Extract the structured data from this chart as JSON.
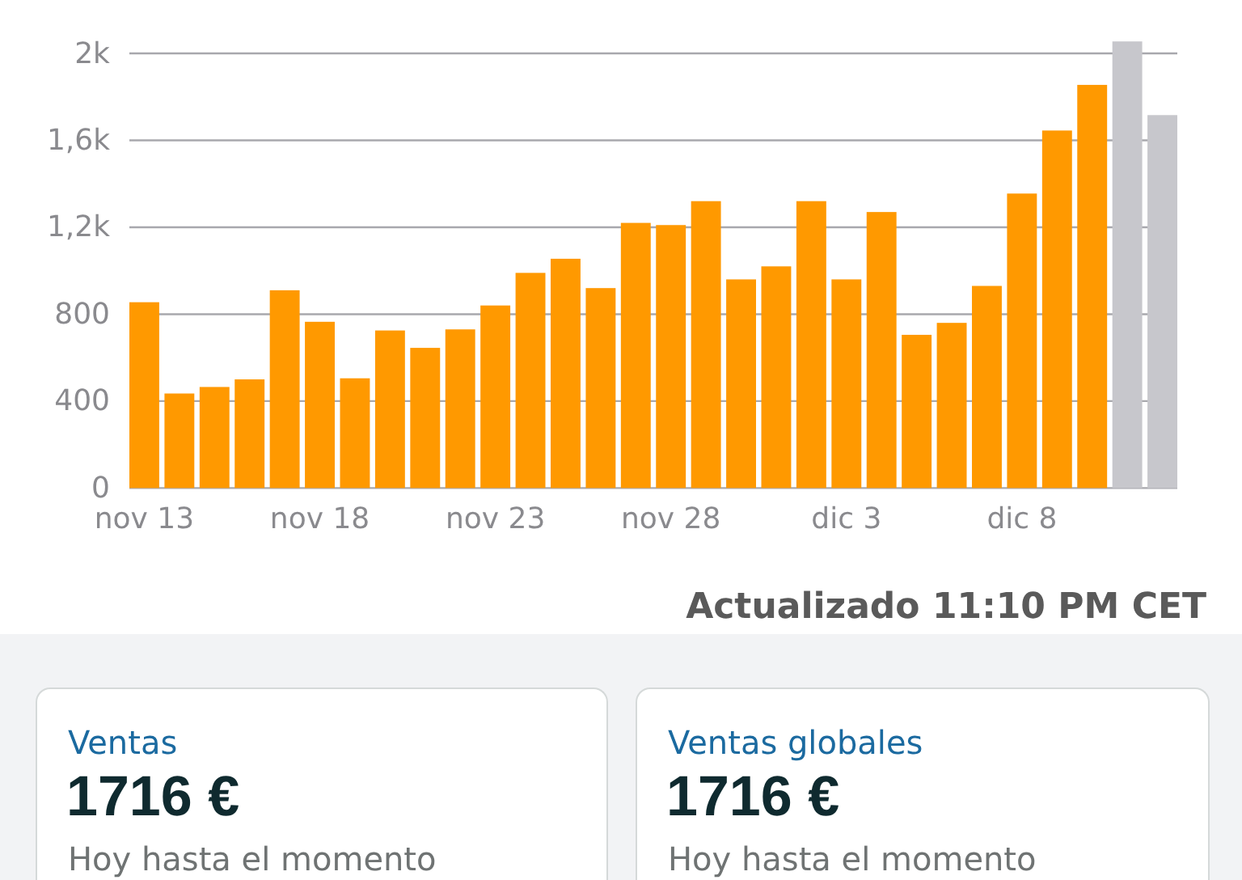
{
  "chart_data": [
    {
      "type": "bar",
      "annotations": [
        "Actualizado 11:10 PM CET"
      ],
      "categories": [
        "nov 13",
        null,
        null,
        null,
        null,
        "nov 18",
        null,
        null,
        null,
        null,
        "nov 23",
        null,
        null,
        null,
        null,
        "nov 28",
        null,
        null,
        null,
        null,
        "dic 3",
        null,
        null,
        null,
        null,
        "dic 8",
        null,
        null,
        null,
        null
      ],
      "values": [
        855,
        435,
        465,
        500,
        910,
        765,
        505,
        725,
        645,
        730,
        840,
        990,
        1055,
        920,
        1220,
        1210,
        1320,
        960,
        1020,
        1320,
        960,
        1270,
        705,
        760,
        930,
        1355,
        1645,
        1855,
        2055,
        1716
      ],
      "colors": [
        "#ff9900",
        "#ff9900",
        "#ff9900",
        "#ff9900",
        "#ff9900",
        "#ff9900",
        "#ff9900",
        "#ff9900",
        "#ff9900",
        "#ff9900",
        "#ff9900",
        "#ff9900",
        "#ff9900",
        "#ff9900",
        "#ff9900",
        "#ff9900",
        "#ff9900",
        "#ff9900",
        "#ff9900",
        "#ff9900",
        "#ff9900",
        "#ff9900",
        "#ff9900",
        "#ff9900",
        "#ff9900",
        "#ff9900",
        "#ff9900",
        "#ff9900",
        "#c7c7cc",
        "#c7c7cc"
      ],
      "ylim": [
        0,
        2055
      ],
      "yticks": [
        0,
        400,
        800,
        {
          "value": 1200,
          "label": "1,2k"
        },
        {
          "value": 1600,
          "label": "1,6k"
        },
        {
          "value": 2000,
          "label": "2k"
        }
      ],
      "grid": "y"
    },
    {
      "type": "other",
      "title": "Ventas",
      "annotations": [
        "1716 €",
        "Hoy hasta el momento"
      ]
    },
    {
      "type": "other",
      "title": "Ventas globales",
      "annotations": [
        "1716 €",
        "Hoy hasta el momento"
      ]
    }
  ]
}
